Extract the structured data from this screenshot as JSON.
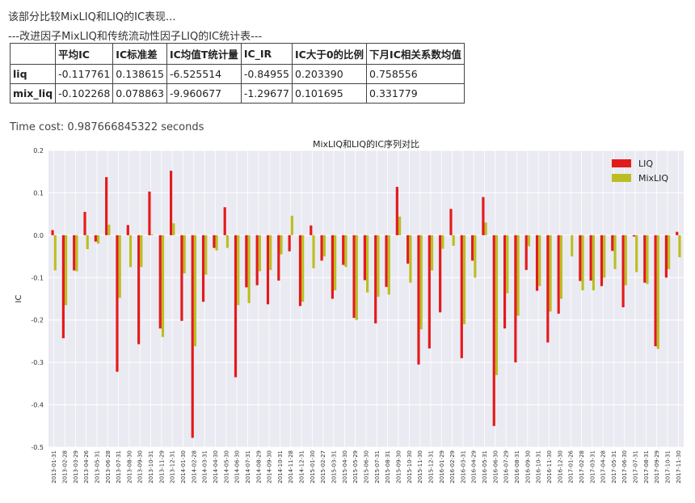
{
  "intro_text": "该部分比较MixLIQ和LIQ的IC表现...",
  "table_title": "---改进因子MixLIQ和传统流动性因子LIQ的IC统计表---",
  "table": {
    "headers": [
      "",
      "平均IC",
      "IC标准差",
      "IC均值T统计量",
      "IC_IR",
      "IC大于0的比例",
      "下月IC相关系数均值"
    ],
    "rows": [
      [
        "liq",
        "-0.117761",
        "0.138615",
        "-6.525514",
        "-0.84955",
        "0.203390",
        "0.758556"
      ],
      [
        "mix_liq",
        "-0.102268",
        "0.078863",
        "-9.960677",
        "-1.29677",
        "0.101695",
        "0.331779"
      ]
    ]
  },
  "time_cost": "Time cost: 0.987666845322 seconds",
  "colors": {
    "liq": "#e31a1c",
    "mixliq": "#bcbd22",
    "plot_bg": "#eaeaf2",
    "grid": "#ffffff"
  },
  "chart_data": {
    "type": "bar",
    "title": "MixLIQ和LIQ的IC序列对比",
    "ylabel": "IC",
    "xlabel": "",
    "ylim": [
      -0.5,
      0.2
    ],
    "yticks": [
      0.2,
      0.1,
      0.0,
      -0.1,
      -0.2,
      -0.3,
      -0.4,
      -0.5
    ],
    "ytick_labels": [
      "0.2",
      "0.1",
      "0.0",
      "-0.1",
      "-0.2",
      "-0.3",
      "-0.4",
      "-0.5"
    ],
    "legend_position": "top-right",
    "categories": [
      "2013-01-31",
      "2013-02-28",
      "2013-03-29",
      "2013-04-26",
      "2013-05-31",
      "2013-06-28",
      "2013-07-31",
      "2013-08-30",
      "2013-09-30",
      "2013-10-31",
      "2013-11-29",
      "2013-12-31",
      "2014-01-30",
      "2014-02-28",
      "2014-03-31",
      "2014-04-30",
      "2014-05-30",
      "2014-06-30",
      "2014-07-31",
      "2014-08-29",
      "2014-09-30",
      "2014-10-31",
      "2014-11-28",
      "2014-12-31",
      "2015-01-30",
      "2015-02-27",
      "2015-03-31",
      "2015-04-30",
      "2015-05-29",
      "2015-06-30",
      "2015-07-31",
      "2015-08-31",
      "2015-09-30",
      "2015-10-30",
      "2015-11-30",
      "2015-12-31",
      "2016-01-29",
      "2016-02-29",
      "2016-03-31",
      "2016-04-29",
      "2016-05-31",
      "2016-06-30",
      "2016-07-29",
      "2016-08-31",
      "2016-09-30",
      "2016-10-31",
      "2016-11-30",
      "2016-12-30",
      "2017-01-26",
      "2017-02-28",
      "2017-03-31",
      "2017-04-28",
      "2017-05-31",
      "2017-06-30",
      "2017-07-31",
      "2017-08-31",
      "2017-09-29",
      "2017-10-31",
      "2017-11-30"
    ],
    "series": [
      {
        "name": "LIQ",
        "values": [
          0.012,
          -0.243,
          -0.083,
          0.055,
          -0.015,
          0.137,
          -0.322,
          0.024,
          -0.257,
          0.103,
          -0.22,
          0.152,
          -0.202,
          -0.478,
          -0.157,
          -0.03,
          0.066,
          -0.335,
          -0.123,
          -0.118,
          -0.163,
          -0.107,
          -0.038,
          -0.167,
          0.023,
          -0.06,
          -0.15,
          -0.07,
          -0.195,
          -0.106,
          -0.208,
          -0.122,
          0.114,
          -0.067,
          -0.305,
          -0.267,
          -0.182,
          0.062,
          -0.29,
          -0.06,
          0.09,
          -0.45,
          -0.22,
          -0.3,
          -0.082,
          -0.131,
          -0.253,
          -0.185,
          0.0,
          -0.108,
          -0.107,
          -0.12,
          -0.037,
          -0.17,
          -0.003,
          -0.112,
          -0.262,
          -0.1,
          0.008
        ]
      },
      {
        "name": "MixLIQ",
        "values": [
          -0.083,
          -0.165,
          -0.085,
          -0.033,
          -0.02,
          0.025,
          -0.148,
          -0.075,
          -0.075,
          0.002,
          -0.24,
          0.028,
          -0.09,
          -0.262,
          -0.093,
          -0.036,
          -0.03,
          -0.165,
          -0.16,
          -0.085,
          -0.082,
          -0.045,
          0.046,
          -0.157,
          -0.078,
          -0.05,
          -0.13,
          -0.075,
          -0.2,
          -0.135,
          -0.145,
          -0.14,
          0.044,
          -0.112,
          -0.222,
          -0.083,
          -0.032,
          -0.025,
          -0.21,
          -0.1,
          0.03,
          -0.33,
          -0.137,
          -0.19,
          -0.026,
          -0.12,
          -0.18,
          -0.15,
          -0.05,
          -0.13,
          -0.13,
          -0.1,
          -0.08,
          -0.118,
          -0.087,
          -0.115,
          -0.268,
          -0.08,
          -0.052
        ]
      }
    ]
  }
}
